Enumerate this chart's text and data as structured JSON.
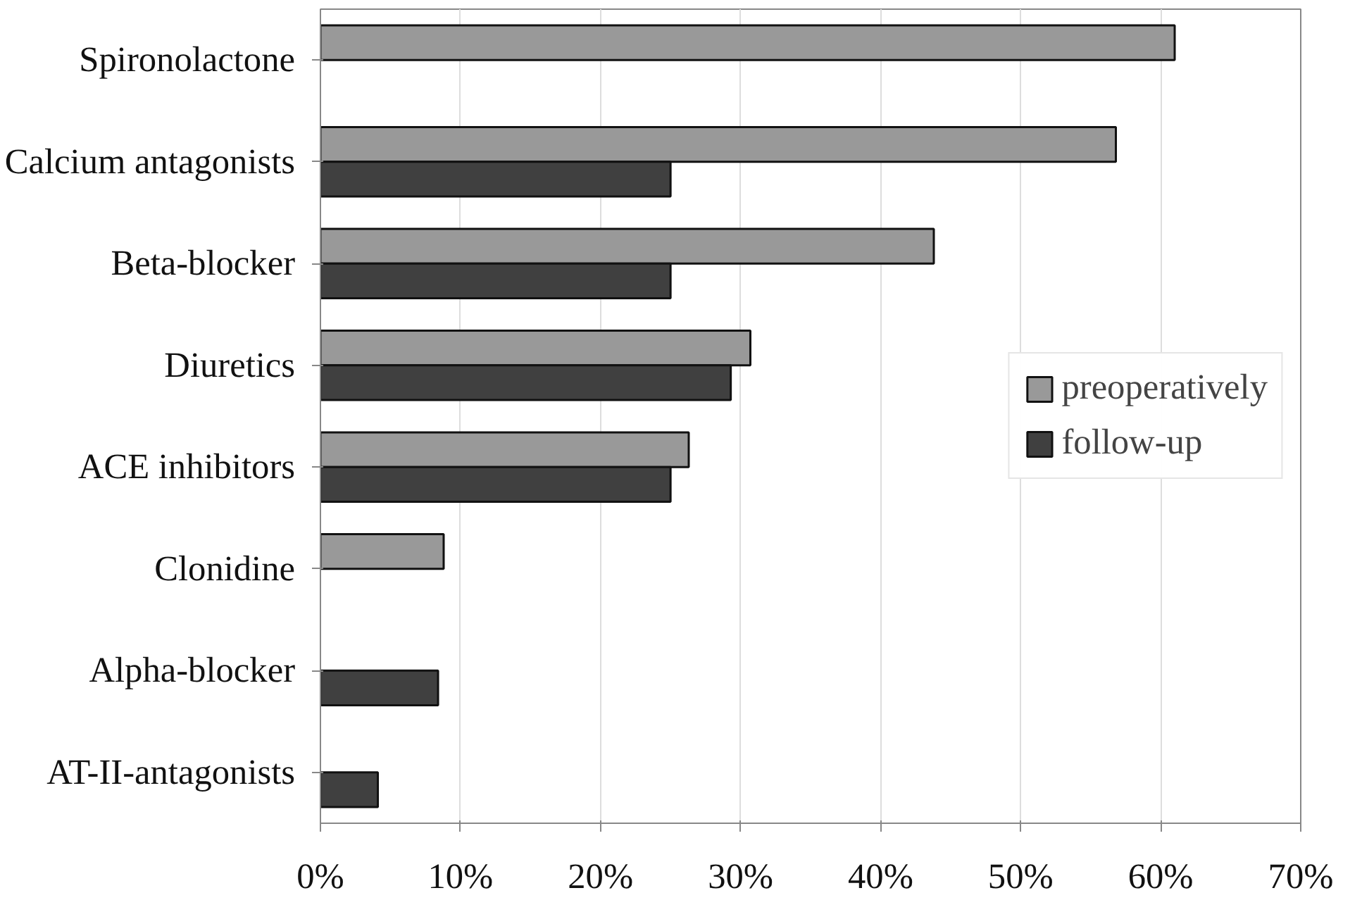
{
  "chart_data": {
    "type": "bar",
    "orientation": "horizontal",
    "categories": [
      "Spironolactone",
      "Calcium antagonists",
      "Beta-blocker",
      "Diuretics",
      "ACE inhibitors",
      "Clonidine",
      "Alpha-blocker",
      "AT-II-antagonists"
    ],
    "series": [
      {
        "name": "preoperatively",
        "color": "#999999",
        "values": [
          61,
          56.8,
          43.8,
          30.7,
          26.3,
          8.8,
          null,
          null
        ]
      },
      {
        "name": "follow-up",
        "color": "#404040",
        "values": [
          null,
          25,
          25,
          29.3,
          25,
          null,
          8.4,
          4.1
        ]
      }
    ],
    "xlim": [
      0,
      70
    ],
    "xticks": [
      {
        "value": 0,
        "label": "0%"
      },
      {
        "value": 10,
        "label": "10%"
      },
      {
        "value": 20,
        "label": "20%"
      },
      {
        "value": 30,
        "label": "30%"
      },
      {
        "value": 40,
        "label": "40%"
      },
      {
        "value": 50,
        "label": "50%"
      },
      {
        "value": 60,
        "label": "60%"
      },
      {
        "value": 70,
        "label": "70%"
      }
    ],
    "grid": "x",
    "legend": "right"
  }
}
